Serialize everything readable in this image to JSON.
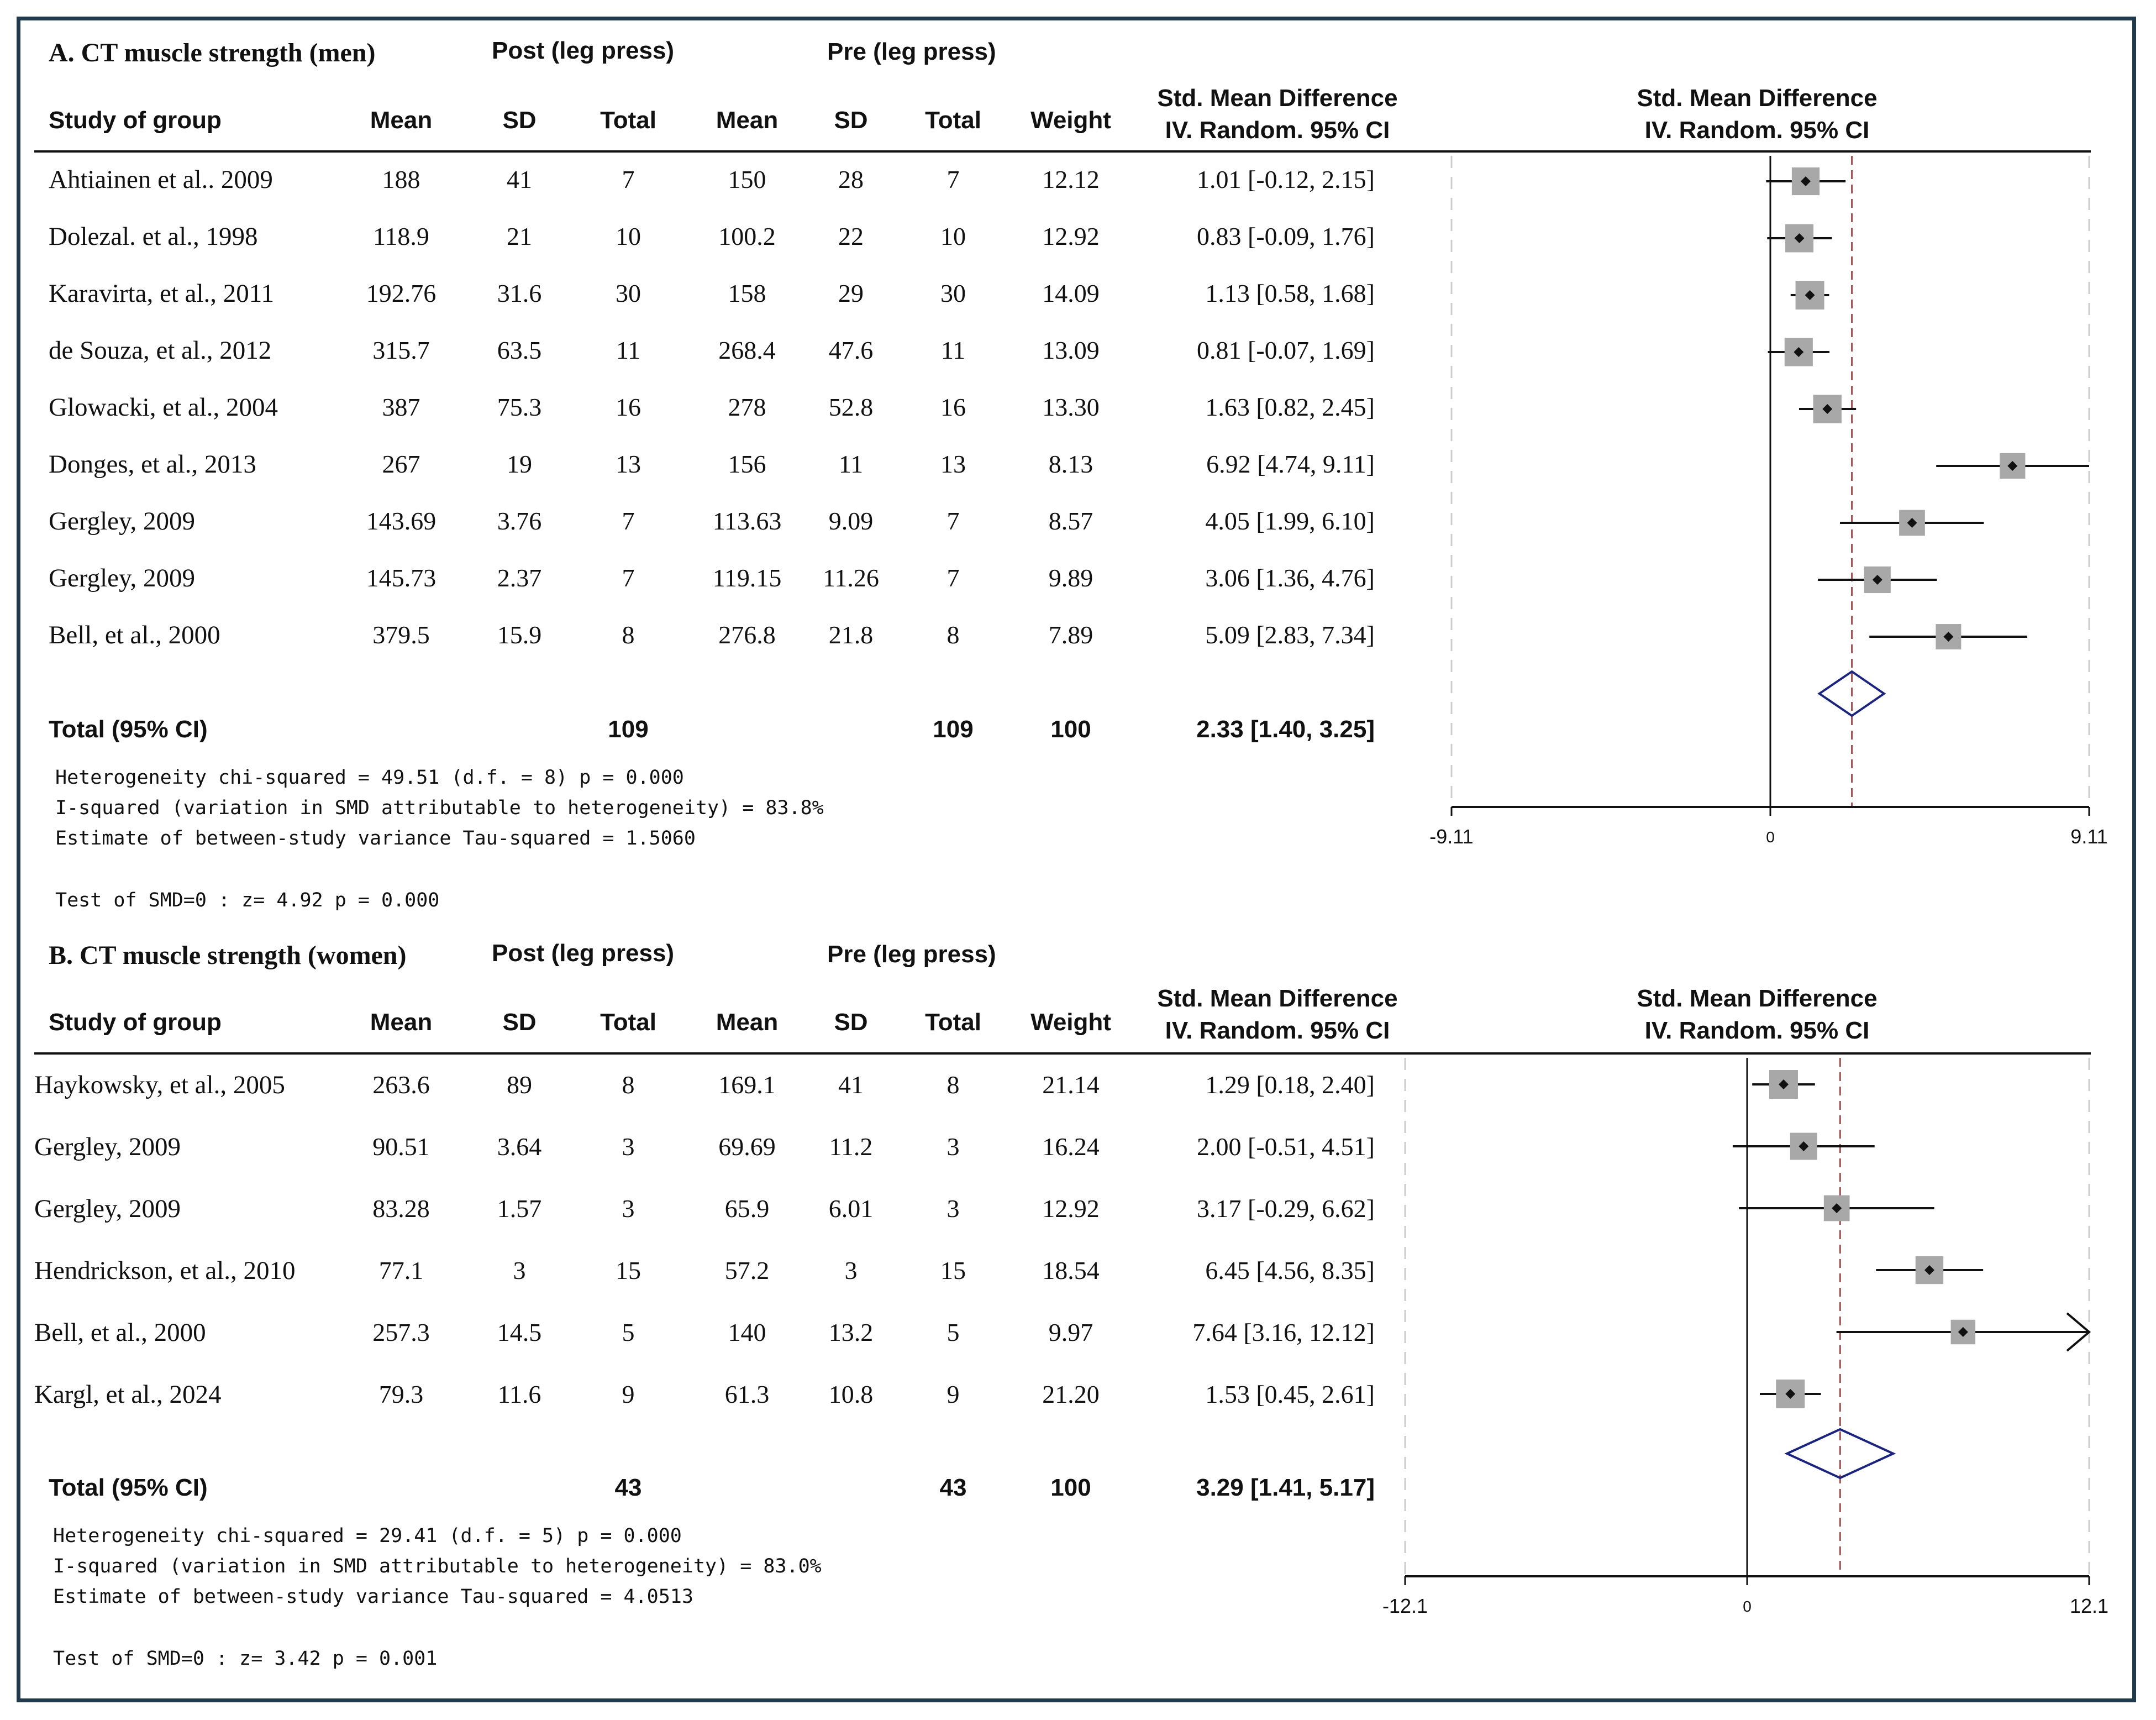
{
  "colors": {
    "border": "#1f3a4d",
    "dashed_line": "#a05050",
    "diamond": "#1a237e",
    "grid": "#cccccc",
    "square": "#a8a8a8"
  },
  "chart_data": [
    {
      "type": "forest",
      "title": "A.  CT muscle strength (men)",
      "group_headers": {
        "post": "Post (leg press)",
        "pre": "Pre (leg press)"
      },
      "columns": {
        "study": "Study of group",
        "mean": "Mean",
        "sd": "SD",
        "total": "Total",
        "weight": "Weight",
        "smd": "Std. Mean Difference",
        "smd_method": "IV. Random. 95% CI"
      },
      "plot_header": {
        "line1": "Std. Mean Difference",
        "line2": "IV. Random. 95% CI"
      },
      "studies": [
        {
          "name": "Ahtiainen et al.. 2009",
          "post_mean": "188",
          "post_sd": "41",
          "post_total": "7",
          "pre_mean": "150",
          "pre_sd": "28",
          "pre_total": "7",
          "weight": "12.12",
          "ci_text": "1.01 [-0.12, 2.15]",
          "est": 1.01,
          "lo": -0.12,
          "hi": 2.15
        },
        {
          "name": "Dolezal. et al., 1998",
          "post_mean": "118.9",
          "post_sd": "21",
          "post_total": "10",
          "pre_mean": "100.2",
          "pre_sd": "22",
          "pre_total": "10",
          "weight": "12.92",
          "ci_text": "0.83 [-0.09, 1.76]",
          "est": 0.83,
          "lo": -0.09,
          "hi": 1.76
        },
        {
          "name": "Karavirta, et al., 2011",
          "post_mean": "192.76",
          "post_sd": "31.6",
          "post_total": "30",
          "pre_mean": "158",
          "pre_sd": "29",
          "pre_total": "30",
          "weight": "14.09",
          "ci_text": "1.13 [0.58, 1.68]",
          "est": 1.13,
          "lo": 0.58,
          "hi": 1.68
        },
        {
          "name": "de Souza, et al., 2012",
          "post_mean": "315.7",
          "post_sd": "63.5",
          "post_total": "11",
          "pre_mean": "268.4",
          "pre_sd": "47.6",
          "pre_total": "11",
          "weight": "13.09",
          "ci_text": "0.81 [-0.07, 1.69]",
          "est": 0.81,
          "lo": -0.07,
          "hi": 1.69
        },
        {
          "name": "Glowacki, et al., 2004",
          "post_mean": "387",
          "post_sd": "75.3",
          "post_total": "16",
          "pre_mean": "278",
          "pre_sd": "52.8",
          "pre_total": "16",
          "weight": "13.30",
          "ci_text": "1.63 [0.82, 2.45]",
          "est": 1.63,
          "lo": 0.82,
          "hi": 2.45
        },
        {
          "name": "Donges, et al., 2013",
          "post_mean": "267",
          "post_sd": "19",
          "post_total": "13",
          "pre_mean": "156",
          "pre_sd": "11",
          "pre_total": "13",
          "weight": "8.13",
          "ci_text": "6.92 [4.74, 9.11]",
          "est": 6.92,
          "lo": 4.74,
          "hi": 9.11
        },
        {
          "name": "Gergley, 2009",
          "post_mean": "143.69",
          "post_sd": "3.76",
          "post_total": "7",
          "pre_mean": "113.63",
          "pre_sd": "9.09",
          "pre_total": "7",
          "weight": "8.57",
          "ci_text": "4.05 [1.99, 6.10]",
          "est": 4.05,
          "lo": 1.99,
          "hi": 6.1
        },
        {
          "name": "Gergley, 2009",
          "post_mean": "145.73",
          "post_sd": "2.37",
          "post_total": "7",
          "pre_mean": "119.15",
          "pre_sd": "11.26",
          "pre_total": "7",
          "weight": "9.89",
          "ci_text": "3.06 [1.36, 4.76]",
          "est": 3.06,
          "lo": 1.36,
          "hi": 4.76
        },
        {
          "name": "Bell, et al., 2000",
          "post_mean": "379.5",
          "post_sd": "15.9",
          "post_total": "8",
          "pre_mean": "276.8",
          "pre_sd": "21.8",
          "pre_total": "8",
          "weight": "7.89",
          "ci_text": "5.09 [2.83, 7.34]",
          "est": 5.09,
          "lo": 2.83,
          "hi": 7.34
        }
      ],
      "total": {
        "label": "Total (95% CI)",
        "post_total": "109",
        "pre_total": "109",
        "weight": "100",
        "ci_text": "2.33 [1.40, 3.25]",
        "est": 2.33,
        "lo": 1.4,
        "hi": 3.25
      },
      "stats": [
        "Heterogeneity chi-squared =  49.51 (d.f. = 8) p = 0.000",
        "I-squared (variation in SMD attributable to heterogeneity) =  83.8%",
        "Estimate of between-study variance Tau-squared =  1.5060"
      ],
      "test": "Test of SMD=0 : z=   4.92 p = 0.000",
      "xlim": [
        -9.11,
        9.11
      ],
      "tick_labels": [
        "-9.11",
        "0",
        "9.11"
      ]
    },
    {
      "type": "forest",
      "title": "B.  CT muscle strength (women)",
      "group_headers": {
        "post": "Post (leg press)",
        "pre": "Pre (leg press)"
      },
      "columns": {
        "study": "Study of group",
        "mean": "Mean",
        "sd": "SD",
        "total": "Total",
        "weight": "Weight",
        "smd": "Std. Mean Difference",
        "smd_method": "IV. Random. 95% CI"
      },
      "plot_header": {
        "line1": "Std. Mean Difference",
        "line2": "IV. Random. 95% CI"
      },
      "studies": [
        {
          "name": "Haykowsky, et al., 2005",
          "post_mean": "263.6",
          "post_sd": "89",
          "post_total": "8",
          "pre_mean": "169.1",
          "pre_sd": "41",
          "pre_total": "8",
          "weight": "21.14",
          "ci_text": "1.29 [0.18, 2.40]",
          "est": 1.29,
          "lo": 0.18,
          "hi": 2.4
        },
        {
          "name": "Gergley, 2009",
          "post_mean": "90.51",
          "post_sd": "3.64",
          "post_total": "3",
          "pre_mean": "69.69",
          "pre_sd": "11.2",
          "pre_total": "3",
          "weight": "16.24",
          "ci_text": "2.00 [-0.51, 4.51]",
          "est": 2.0,
          "lo": -0.51,
          "hi": 4.51
        },
        {
          "name": "Gergley, 2009",
          "post_mean": "83.28",
          "post_sd": "1.57",
          "post_total": "3",
          "pre_mean": "65.9",
          "pre_sd": "6.01",
          "pre_total": "3",
          "weight": "12.92",
          "ci_text": "3.17 [-0.29, 6.62]",
          "est": 3.17,
          "lo": -0.29,
          "hi": 6.62
        },
        {
          "name": "Hendrickson, et al., 2010",
          "post_mean": "77.1",
          "post_sd": "3",
          "post_total": "15",
          "pre_mean": "57.2",
          "pre_sd": "3",
          "pre_total": "15",
          "weight": "18.54",
          "ci_text": "6.45 [4.56, 8.35]",
          "est": 6.45,
          "lo": 4.56,
          "hi": 8.35
        },
        {
          "name": "Bell, et al.,  2000",
          "post_mean": "257.3",
          "post_sd": "14.5",
          "post_total": "5",
          "pre_mean": "140",
          "pre_sd": "13.2",
          "pre_total": "5",
          "weight": "9.97",
          "ci_text": "7.64 [3.16, 12.12]",
          "est": 7.64,
          "lo": 3.16,
          "hi": 12.12
        },
        {
          "name": "Kargl, et al., 2024",
          "post_mean": "79.3",
          "post_sd": "11.6",
          "post_total": "9",
          "pre_mean": "61.3",
          "pre_sd": "10.8",
          "pre_total": "9",
          "weight": "21.20",
          "ci_text": "1.53 [0.45, 2.61]",
          "est": 1.53,
          "lo": 0.45,
          "hi": 2.61
        }
      ],
      "total": {
        "label": "Total (95% CI)",
        "post_total": "43",
        "pre_total": "43",
        "weight": "100",
        "ci_text": "3.29 [1.41, 5.17]",
        "est": 3.29,
        "lo": 1.41,
        "hi": 5.17
      },
      "stats": [
        "Heterogeneity chi-squared =  29.41 (d.f. = 5) p = 0.000",
        "I-squared (variation in SMD attributable to heterogeneity) =  83.0%",
        "Estimate of between-study variance Tau-squared =  4.0513"
      ],
      "test": "Test of SMD=0 : z=   3.42 p = 0.001",
      "xlim": [
        -12.1,
        12.1
      ],
      "tick_labels": [
        "-12.1",
        "0",
        "12.1"
      ]
    }
  ]
}
